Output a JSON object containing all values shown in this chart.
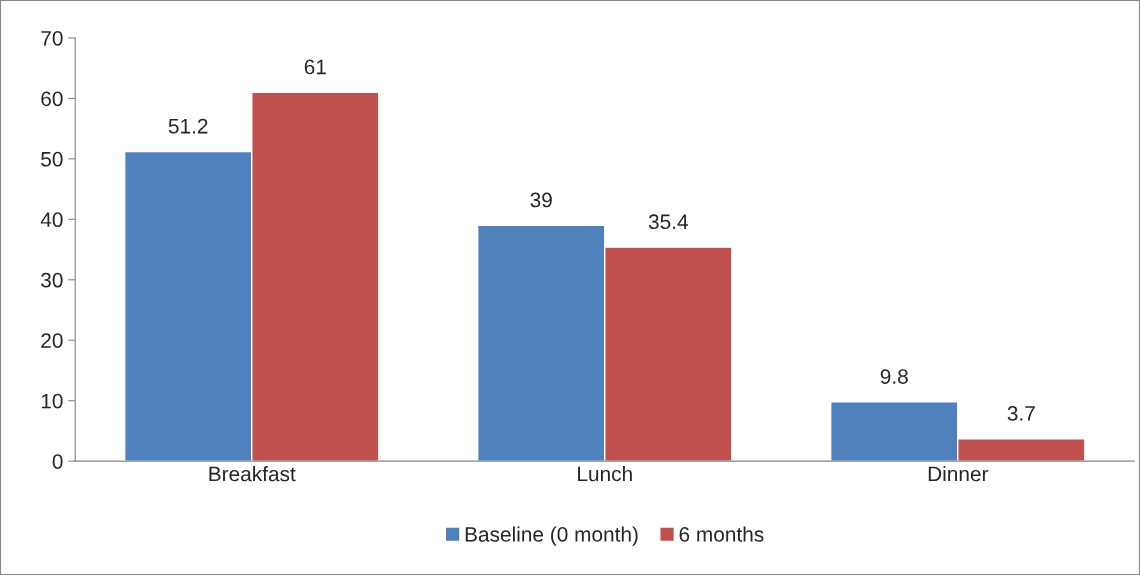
{
  "chart_data": {
    "type": "bar",
    "categories": [
      "Breakfast",
      "Lunch",
      "Dinner"
    ],
    "series": [
      {
        "name": "Baseline (0 month)",
        "color": "#4f81bd",
        "values": [
          51.2,
          39,
          9.8
        ]
      },
      {
        "name": "6 months",
        "color": "#c0504d",
        "values": [
          61,
          35.4,
          3.7
        ]
      }
    ],
    "ylim": [
      0,
      70
    ],
    "yticks": [
      0,
      10,
      20,
      30,
      40,
      50,
      60,
      70
    ],
    "data_labels": true,
    "grid": false,
    "legend": "bottom"
  }
}
